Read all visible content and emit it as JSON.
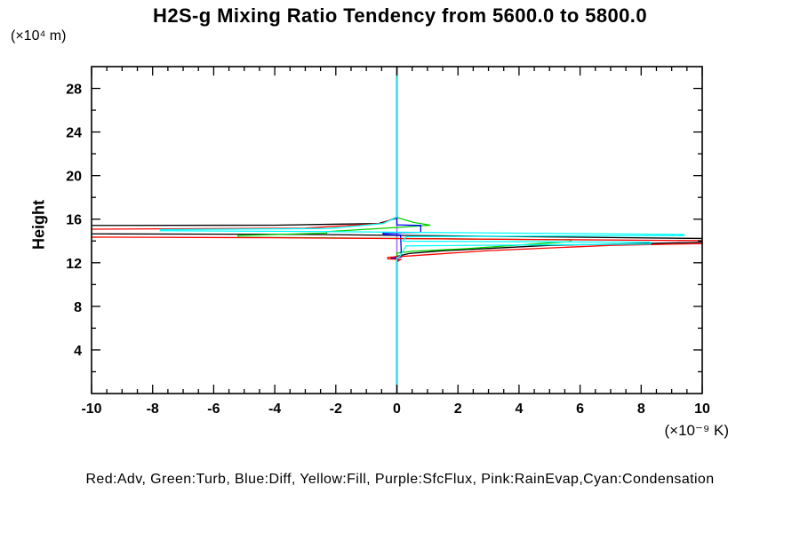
{
  "chart_data": {
    "type": "line",
    "title": "H2S-g Mixing Ratio Tendency from 5600.0 to 5800.0",
    "ylabel": "Height",
    "y_unit": "(×10⁴ m)",
    "xlabel": "",
    "x_unit": "(×10⁻⁹ K)",
    "legend_text": "Red:Adv, Green:Turb, Blue:Diff, Yellow:Fill, Purple:SfcFlux, Pink:RainEvap,Cyan:Condensation",
    "background_color": "#FFFFFF",
    "axis_color": "#000000",
    "grid": false,
    "legend_position": "bottom-center",
    "xlim": [
      -10,
      10
    ],
    "ylim": [
      0,
      30
    ],
    "x_major_ticks": [
      -10,
      -8,
      -6,
      -4,
      -2,
      0,
      2,
      4,
      6,
      8,
      10
    ],
    "x_tick_labels": [
      "-10",
      "-8",
      "-6",
      "-4",
      "-2",
      "0",
      "2",
      "4",
      "6",
      "8",
      "10"
    ],
    "x_minor_step": 0.5,
    "y_major_ticks": [
      4,
      8,
      12,
      16,
      20,
      24,
      28
    ],
    "y_tick_labels": [
      "4",
      "8",
      "12",
      "16",
      "20",
      "24",
      "28"
    ],
    "y_minor_step": 2,
    "series": [
      {
        "name": "Fill",
        "color_name": "Yellow",
        "color": "#FFFF00",
        "points": [
          [
            0,
            30
          ],
          [
            0,
            0
          ]
        ]
      },
      {
        "name": "RainEvap",
        "color_name": "Pink",
        "color": "#FF88BB",
        "points": [
          [
            0,
            30
          ],
          [
            0,
            0
          ]
        ]
      },
      {
        "name": "SfcFlux",
        "color_name": "Purple",
        "color": "#9966FF",
        "points": [
          [
            0,
            30
          ],
          [
            0,
            0
          ]
        ]
      },
      {
        "name": "Black",
        "color_name": "Black",
        "color": "#000000",
        "points": [
          [
            0,
            30
          ],
          [
            0,
            16.1
          ],
          [
            -0.6,
            15.6
          ],
          [
            -4,
            15.45
          ],
          [
            -10.4,
            15.42
          ],
          [
            -10.4,
            14.66
          ],
          [
            -3,
            14.6
          ],
          [
            0.5,
            14.5
          ],
          [
            10.4,
            14.22
          ],
          [
            10.4,
            13.9
          ],
          [
            5,
            13.6
          ],
          [
            1.5,
            13.1
          ],
          [
            0.4,
            12.85
          ],
          [
            -0.2,
            12.45
          ],
          [
            0.05,
            12.3
          ],
          [
            0,
            12.1
          ],
          [
            0,
            0
          ]
        ]
      },
      {
        "name": "Turb",
        "color_name": "Green",
        "color": "#00D000",
        "points": [
          [
            0,
            30
          ],
          [
            0,
            16.15
          ],
          [
            0.55,
            15.7
          ],
          [
            1.1,
            15.45
          ],
          [
            0.2,
            15.28
          ],
          [
            -2.3,
            14.85
          ],
          [
            -2.3,
            14.72
          ],
          [
            -5.2,
            14.5
          ],
          [
            -5.2,
            14.35
          ],
          [
            5.7,
            14.1
          ],
          [
            5.7,
            13.95
          ],
          [
            2.3,
            13.3
          ],
          [
            0.5,
            13.05
          ],
          [
            0,
            12.9
          ],
          [
            0,
            0
          ]
        ]
      },
      {
        "name": "Diff",
        "color_name": "Blue",
        "color": "#0000FF",
        "points": [
          [
            0,
            30
          ],
          [
            0,
            15.48
          ],
          [
            0.78,
            15.42
          ],
          [
            0.78,
            14.8
          ],
          [
            -0.45,
            14.74
          ],
          [
            -0.45,
            14.62
          ],
          [
            0.12,
            14.55
          ],
          [
            0.14,
            13.3
          ],
          [
            0.14,
            12.52
          ],
          [
            -0.16,
            12.42
          ],
          [
            0.06,
            12.3
          ],
          [
            0,
            12.14
          ],
          [
            0,
            0
          ]
        ]
      },
      {
        "name": "Adv",
        "color_name": "Red",
        "color": "#FF0000",
        "points": [
          [
            0,
            30
          ],
          [
            0,
            16.2
          ],
          [
            -0.5,
            15.6
          ],
          [
            -3,
            15.18
          ],
          [
            -10.4,
            15.07
          ],
          [
            -10.4,
            14.36
          ],
          [
            -4,
            14.3
          ],
          [
            0.3,
            14.22
          ],
          [
            10.4,
            14.02
          ],
          [
            10.4,
            13.78
          ],
          [
            7,
            13.6
          ],
          [
            3,
            13.12
          ],
          [
            0.8,
            12.7
          ],
          [
            -0.3,
            12.5
          ],
          [
            -0.3,
            12.36
          ],
          [
            0.12,
            12.3
          ],
          [
            0,
            12.08
          ],
          [
            0,
            0
          ]
        ]
      },
      {
        "name": "Condensation",
        "color_name": "Cyan",
        "color": "#00FFFF",
        "points": [
          [
            0,
            30
          ],
          [
            0,
            16.2
          ],
          [
            -0.45,
            15.6
          ],
          [
            -2.2,
            15.15
          ],
          [
            -7.75,
            15.04
          ],
          [
            -7.75,
            14.94
          ],
          [
            -3.4,
            14.88
          ],
          [
            9.4,
            14.6
          ],
          [
            9.4,
            14.5
          ],
          [
            0.3,
            14.4
          ],
          [
            0.2,
            13.98
          ],
          [
            8.3,
            13.88
          ],
          [
            8.3,
            13.72
          ],
          [
            0.3,
            13.55
          ],
          [
            0.1,
            12.6
          ],
          [
            0,
            12.42
          ],
          [
            0,
            0
          ]
        ]
      }
    ]
  }
}
